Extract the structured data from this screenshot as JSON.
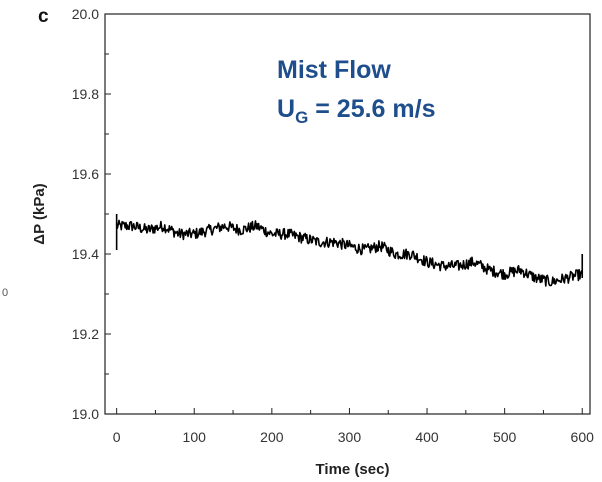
{
  "panel_label": "c",
  "stray_mark": "0",
  "chart_data": {
    "type": "line",
    "title": "",
    "xlabel": "Time (sec)",
    "ylabel": "ΔP (kPa)",
    "xlim": [
      -15,
      610
    ],
    "ylim": [
      19.0,
      20.0
    ],
    "xticks": [
      0,
      100,
      200,
      300,
      400,
      500,
      600
    ],
    "xtick_labels": [
      "0",
      "100",
      "200",
      "300",
      "400",
      "500",
      "600"
    ],
    "yticks": [
      19.0,
      19.2,
      19.4,
      19.6,
      19.8,
      20.0
    ],
    "ytick_labels": [
      "19.0",
      "19.2",
      "19.4",
      "19.6",
      "19.8",
      "20.0"
    ],
    "grid": false,
    "annotations": [
      {
        "text": "Mist Flow",
        "color": "#1f4e8c"
      },
      {
        "text_main": "U",
        "text_sub": "G",
        "text_rest": " = 25.6 m/s",
        "color": "#1f4e8c"
      }
    ],
    "series": [
      {
        "color": "#000000",
        "x": [
          0,
          20,
          40,
          60,
          80,
          100,
          120,
          140,
          160,
          180,
          200,
          220,
          240,
          260,
          280,
          300,
          320,
          340,
          360,
          380,
          400,
          420,
          440,
          460,
          480,
          500,
          520,
          540,
          560,
          580,
          600
        ],
        "y": [
          19.47,
          19.47,
          19.46,
          19.47,
          19.45,
          19.45,
          19.46,
          19.47,
          19.46,
          19.47,
          19.45,
          19.45,
          19.44,
          19.43,
          19.43,
          19.42,
          19.41,
          19.42,
          19.4,
          19.4,
          19.38,
          19.37,
          19.37,
          19.38,
          19.36,
          19.35,
          19.36,
          19.34,
          19.33,
          19.34,
          19.35
        ]
      }
    ]
  }
}
